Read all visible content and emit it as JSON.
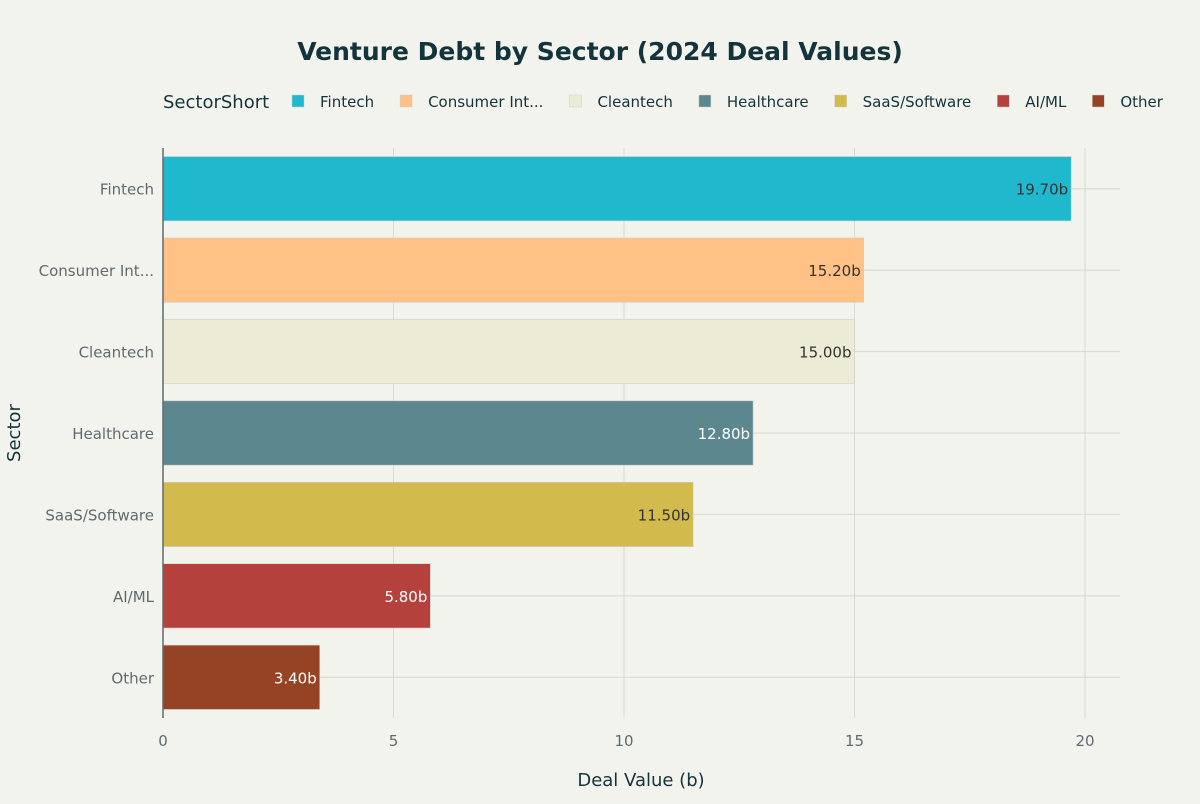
{
  "chart_data": {
    "type": "bar",
    "orientation": "horizontal",
    "title": "Venture Debt by Sector (2024 Deal Values)",
    "xlabel": "Deal Value (b)",
    "ylabel": "Sector",
    "legend_title": "SectorShort",
    "legend_placement": "top",
    "grid": true,
    "xlim": [
      0,
      20.7
    ],
    "xticks": [
      0,
      5,
      10,
      15,
      20
    ],
    "categories": [
      "Fintech",
      "Consumer Int...",
      "Cleantech",
      "Healthcare",
      "SaaS/Software",
      "AI/ML",
      "Other"
    ],
    "values": [
      19.7,
      15.2,
      15.0,
      12.8,
      11.5,
      5.8,
      3.4
    ],
    "data_labels": [
      "19.70b",
      "15.20b",
      "15.00b",
      "12.80b",
      "11.50b",
      "5.80b",
      "3.40b"
    ],
    "colors": [
      "#1FB8CD",
      "#FFC185",
      "#ECEBD5",
      "#5D878F",
      "#D2BA4C",
      "#B4413C",
      "#964325"
    ],
    "label_colors": [
      "#333333",
      "#333333",
      "#333333",
      "#FFFFFF",
      "#333333",
      "#FFFFFF",
      "#FFFFFF"
    ]
  }
}
